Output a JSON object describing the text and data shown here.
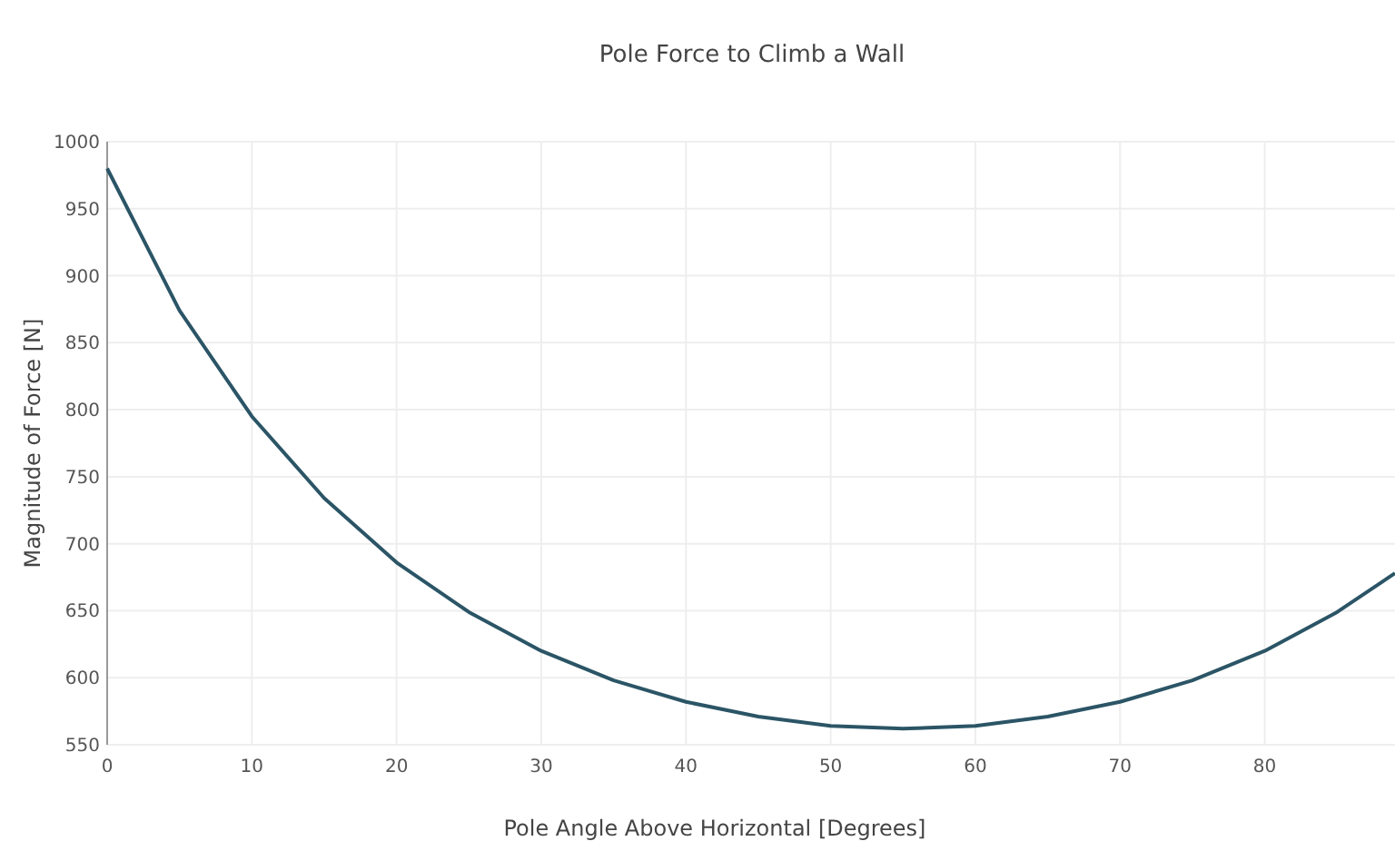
{
  "chart_data": {
    "type": "line",
    "title": "Pole Force to Climb a Wall",
    "xlabel": "Pole Angle Above Horizontal [Degrees]",
    "ylabel": "Magnitude of Force [N]",
    "x": [
      0,
      5,
      10,
      15,
      20,
      25,
      30,
      35,
      40,
      45,
      50,
      55,
      60,
      65,
      70,
      75,
      80,
      85,
      89
    ],
    "series": [
      {
        "color": "#2b5566",
        "values": [
          980,
          874,
          795,
          734,
          686,
          649,
          620,
          598,
          582,
          571,
          564,
          562,
          564,
          571,
          582,
          598,
          620,
          649,
          678
        ]
      }
    ],
    "xlim": [
      0,
      89
    ],
    "ylim": [
      550,
      1000
    ],
    "xticks": [
      0,
      10,
      20,
      30,
      40,
      50,
      60,
      70,
      80
    ],
    "yticks": [
      550,
      600,
      650,
      700,
      750,
      800,
      850,
      900,
      950,
      1000
    ],
    "grid": true,
    "marker": "none",
    "line_style": "solid"
  }
}
